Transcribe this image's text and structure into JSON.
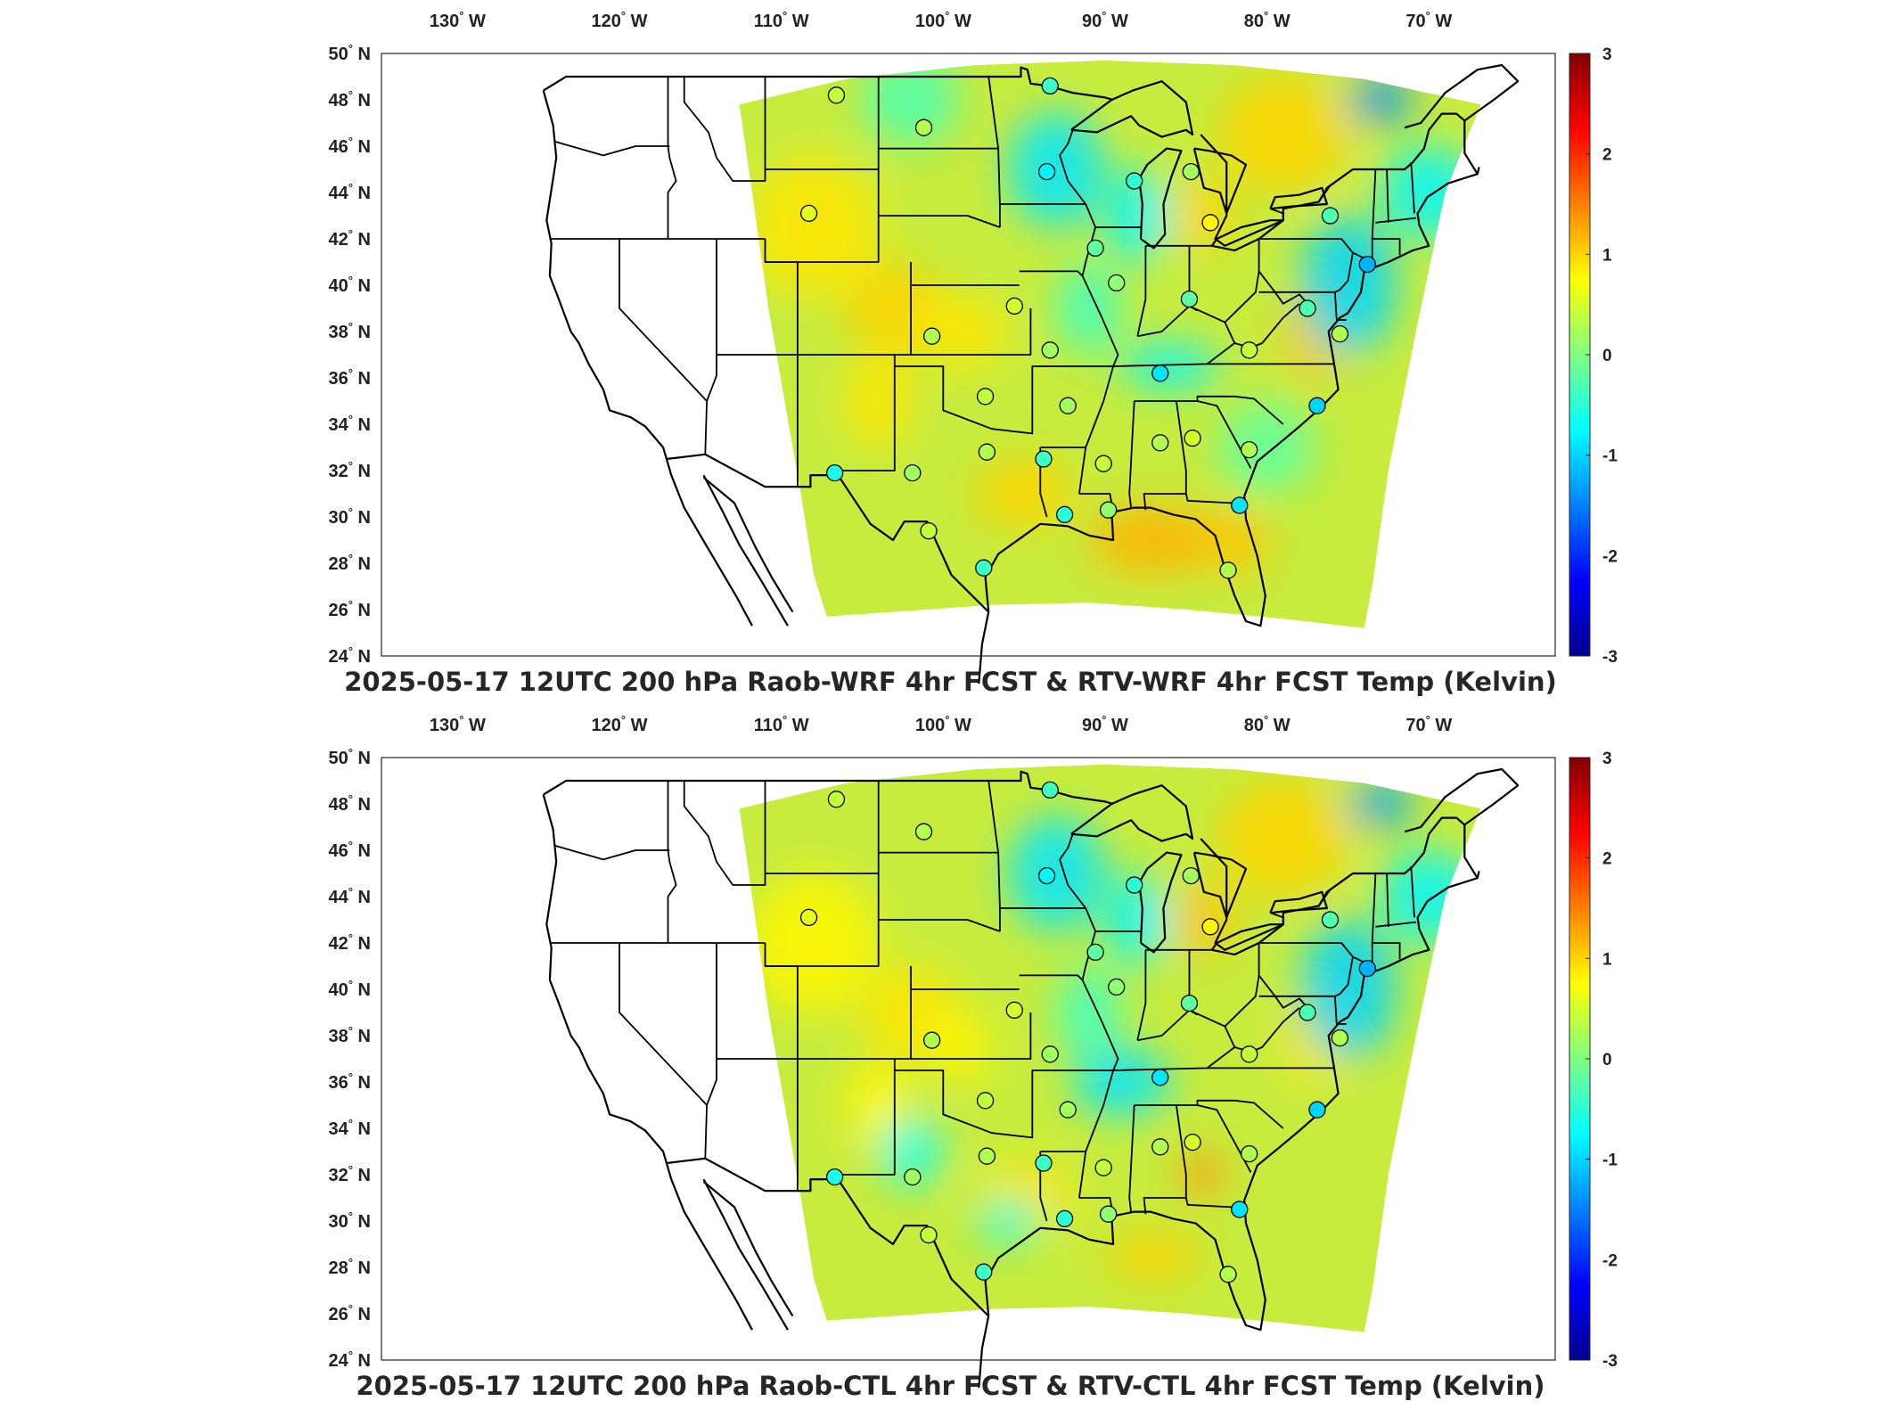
{
  "lon_ticks": [
    {
      "value": "130",
      "suffix": "W"
    },
    {
      "value": "120",
      "suffix": "W"
    },
    {
      "value": "110",
      "suffix": "W"
    },
    {
      "value": "100",
      "suffix": "W"
    },
    {
      "value": "90",
      "suffix": "W"
    },
    {
      "value": "80",
      "suffix": "W"
    },
    {
      "value": "70",
      "suffix": "W"
    }
  ],
  "lat_ticks": [
    {
      "value": "50",
      "suffix": "N"
    },
    {
      "value": "48",
      "suffix": "N"
    },
    {
      "value": "46",
      "suffix": "N"
    },
    {
      "value": "44",
      "suffix": "N"
    },
    {
      "value": "42",
      "suffix": "N"
    },
    {
      "value": "40",
      "suffix": "N"
    },
    {
      "value": "38",
      "suffix": "N"
    },
    {
      "value": "36",
      "suffix": "N"
    },
    {
      "value": "34",
      "suffix": "N"
    },
    {
      "value": "32",
      "suffix": "N"
    },
    {
      "value": "30",
      "suffix": "N"
    },
    {
      "value": "28",
      "suffix": "N"
    },
    {
      "value": "26",
      "suffix": "N"
    },
    {
      "value": "24",
      "suffix": "N"
    }
  ],
  "colorbar": {
    "ticks": [
      "3",
      "2",
      "1",
      "0",
      "-1",
      "-2",
      "-3"
    ],
    "range": [
      -3,
      3
    ],
    "colormap": [
      "#00008f",
      "#0000ff",
      "#0080ff",
      "#00ffff",
      "#80ff80",
      "#ffff00",
      "#ff8000",
      "#ff0000",
      "#800000"
    ]
  },
  "colors": {
    "field_base": "#c8ec3e",
    "warm": "#f5c21a",
    "cool": "#27d7d8",
    "coast": "#000000"
  },
  "panels": [
    {
      "title": "2025-05-17 12UTC 200 hPa Raob-WRF 4hr FCST & RTV-WRF 4hr FCST Temp (Kelvin)"
    },
    {
      "title": "2025-05-17 12UTC 200 hPa Raob-CTL 4hr FCST & RTV-CTL 4hr FCST Temp (Kelvin)"
    }
  ],
  "raob_stations": [
    {
      "lon": -106.6,
      "lat": 48.2,
      "diff": 0.4
    },
    {
      "lon": -101.2,
      "lat": 46.8,
      "diff": 0.3
    },
    {
      "lon": -93.4,
      "lat": 48.6,
      "diff": -0.4
    },
    {
      "lon": -93.6,
      "lat": 44.9,
      "diff": -0.8
    },
    {
      "lon": -88.2,
      "lat": 44.5,
      "diff": -0.5
    },
    {
      "lon": -84.7,
      "lat": 44.9,
      "diff": 0.2
    },
    {
      "lon": -83.5,
      "lat": 42.7,
      "diff": 0.8
    },
    {
      "lon": -76.1,
      "lat": 43.0,
      "diff": -0.3
    },
    {
      "lon": -108.3,
      "lat": 43.1,
      "diff": 0.6
    },
    {
      "lon": -90.6,
      "lat": 41.6,
      "diff": -0.2
    },
    {
      "lon": -89.3,
      "lat": 40.1,
      "diff": 0.1
    },
    {
      "lon": -84.8,
      "lat": 39.4,
      "diff": -0.2
    },
    {
      "lon": -73.8,
      "lat": 40.9,
      "diff": -1.2
    },
    {
      "lon": -95.6,
      "lat": 39.1,
      "diff": 0.5
    },
    {
      "lon": -100.7,
      "lat": 37.8,
      "diff": 0.3
    },
    {
      "lon": -93.4,
      "lat": 37.2,
      "diff": 0.2
    },
    {
      "lon": -86.6,
      "lat": 36.2,
      "diff": -0.9
    },
    {
      "lon": -81.1,
      "lat": 37.2,
      "diff": 0.4
    },
    {
      "lon": -77.5,
      "lat": 39.0,
      "diff": -0.3
    },
    {
      "lon": -75.5,
      "lat": 37.9,
      "diff": 0.3
    },
    {
      "lon": -97.4,
      "lat": 35.2,
      "diff": 0.4
    },
    {
      "lon": -92.3,
      "lat": 34.8,
      "diff": 0.2
    },
    {
      "lon": -76.9,
      "lat": 34.8,
      "diff": -1.0
    },
    {
      "lon": -97.3,
      "lat": 32.8,
      "diff": 0.3
    },
    {
      "lon": -101.9,
      "lat": 31.9,
      "diff": 0.2
    },
    {
      "lon": -106.7,
      "lat": 31.9,
      "diff": -0.6
    },
    {
      "lon": -93.8,
      "lat": 32.5,
      "diff": -0.4
    },
    {
      "lon": -90.1,
      "lat": 32.3,
      "diff": 0.4
    },
    {
      "lon": -86.6,
      "lat": 33.2,
      "diff": 0.3
    },
    {
      "lon": -84.6,
      "lat": 33.4,
      "diff": 0.5
    },
    {
      "lon": -81.1,
      "lat": 32.9,
      "diff": 0.3
    },
    {
      "lon": -92.5,
      "lat": 30.1,
      "diff": -0.5
    },
    {
      "lon": -89.8,
      "lat": 30.3,
      "diff": 0.1
    },
    {
      "lon": -81.7,
      "lat": 30.5,
      "diff": -0.9
    },
    {
      "lon": -100.9,
      "lat": 29.4,
      "diff": 0.4
    },
    {
      "lon": -97.5,
      "lat": 27.8,
      "diff": -0.4
    },
    {
      "lon": -82.4,
      "lat": 27.7,
      "diff": 0.3
    }
  ]
}
